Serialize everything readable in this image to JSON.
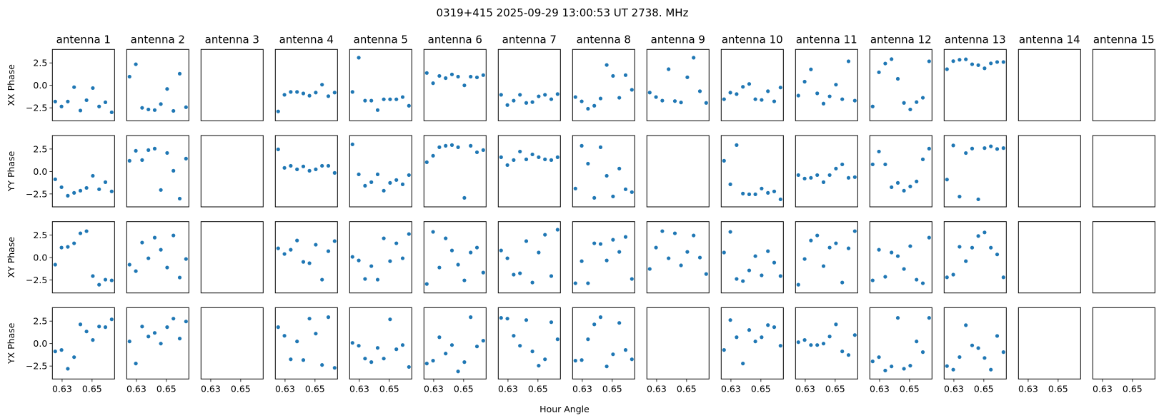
{
  "chart_data": {
    "type": "scatter",
    "title": "0319+415  2025-09-29 13:00:53 UT  2738. MHz",
    "xlabel": "Hour Angle",
    "xlim": [
      0.6235,
      0.665
    ],
    "ylim": [
      -3.94,
      4.0
    ],
    "xticks": [
      "0.63",
      "0.65"
    ],
    "xtick_values": [
      0.63,
      0.65
    ],
    "yticks": [
      "2.5",
      "0.0",
      "−2.5"
    ],
    "ytick_values": [
      2.5,
      0.0,
      -2.5
    ],
    "marker_color": "#1f77b4",
    "antennas": [
      "antenna 1",
      "antenna 2",
      "antenna 3",
      "antenna 4",
      "antenna 5",
      "antenna 6",
      "antenna 7",
      "antenna 8",
      "antenna 9",
      "antenna 10",
      "antenna 11",
      "antenna 12",
      "antenna 13",
      "antenna 14",
      "antenna 15"
    ],
    "x": [
      0.6254,
      0.6296,
      0.6338,
      0.638,
      0.6422,
      0.6463,
      0.6505,
      0.6547,
      0.6589,
      0.6631
    ],
    "rows": [
      {
        "name": "XX Phase",
        "values": [
          [
            -1.8,
            -2.35,
            -1.8,
            -0.2,
            -2.8,
            -1.65,
            -0.3,
            -2.35,
            -1.88,
            -3.0
          ],
          [
            0.97,
            2.35,
            -2.5,
            -2.68,
            -2.75,
            -2.08,
            -0.4,
            -2.84,
            1.3,
            -2.43
          ],
          null,
          [
            -2.9,
            -1.05,
            -0.73,
            -0.73,
            -0.9,
            -1.15,
            -0.8,
            0.08,
            -1.2,
            -0.8
          ],
          [
            -0.73,
            3.08,
            -1.7,
            -1.7,
            -2.75,
            -1.55,
            -1.55,
            -1.55,
            -1.3,
            -2.27
          ],
          [
            1.38,
            0.24,
            1.05,
            0.81,
            1.22,
            0.97,
            0.0,
            0.97,
            0.89,
            1.14
          ],
          [
            -1.05,
            -2.19,
            -1.7,
            -1.05,
            -1.95,
            -1.86,
            -1.22,
            -1.05,
            -1.54,
            -0.97
          ],
          [
            -1.3,
            -1.78,
            -2.6,
            -2.27,
            -1.46,
            2.27,
            1.05,
            -1.38,
            1.14,
            -0.49
          ],
          [
            -0.8,
            -1.3,
            -1.7,
            1.8,
            -1.75,
            -1.9,
            0.9,
            3.08,
            -0.65,
            -1.95
          ],
          [
            -1.54,
            -0.81,
            -0.97,
            -0.16,
            0.16,
            -1.54,
            -1.62,
            -0.65,
            -1.78,
            -0.24
          ],
          [
            -1.14,
            0.41,
            1.78,
            -0.89,
            -2.03,
            -1.22,
            0.08,
            -1.54,
            2.68,
            -1.7
          ],
          [
            -2.35,
            1.46,
            2.43,
            2.92,
            0.73,
            -1.95,
            -2.68,
            -1.86,
            -1.38,
            2.68
          ],
          [
            1.8,
            2.7,
            2.85,
            2.9,
            2.35,
            2.25,
            1.9,
            2.45,
            2.6,
            2.6
          ],
          null,
          null
        ]
      },
      {
        "name": "YY Phase",
        "values": [
          [
            -0.87,
            -1.75,
            -2.7,
            -2.38,
            -2.14,
            -1.83,
            -0.48,
            -1.98,
            -1.19,
            -2.22
          ],
          [
            1.19,
            2.3,
            1.27,
            2.38,
            2.54,
            -2.06,
            2.06,
            0.08,
            -3.02,
            1.43
          ],
          null,
          [
            2.46,
            0.4,
            0.63,
            0.24,
            0.56,
            0.08,
            0.24,
            0.63,
            0.63,
            -0.16
          ],
          [
            3.02,
            -0.32,
            -1.59,
            -1.19,
            -0.32,
            -2.14,
            -1.27,
            -0.95,
            -1.43,
            -0.4
          ],
          [
            1.03,
            1.75,
            2.7,
            2.86,
            2.94,
            2.7,
            -2.94,
            2.86,
            2.14,
            2.38
          ],
          [
            1.59,
            0.71,
            1.27,
            2.22,
            1.35,
            1.9,
            1.59,
            1.35,
            1.27,
            1.59
          ],
          [
            -1.9,
            2.86,
            0.87,
            -2.94,
            2.7,
            -0.48,
            -2.78,
            0.32,
            -1.98,
            -2.3
          ],
          null,
          [
            1.19,
            -1.43,
            2.94,
            -2.46,
            -2.54,
            -2.54,
            -1.9,
            -2.38,
            -2.22,
            -3.1
          ],
          [
            -0.4,
            -0.79,
            -0.71,
            -0.4,
            -1.19,
            -0.4,
            0.32,
            0.79,
            -0.71,
            -0.63
          ],
          [
            0.79,
            2.22,
            0.79,
            -1.75,
            -1.27,
            -2.14,
            -1.67,
            -1.11,
            1.35,
            2.54
          ],
          [
            -0.9,
            2.9,
            -2.8,
            2.05,
            2.55,
            -3.1,
            2.6,
            2.8,
            2.5,
            2.6
          ],
          null,
          null
        ]
      },
      {
        "name": "XY Phase",
        "values": [
          [
            -0.79,
            1.11,
            1.19,
            1.59,
            2.7,
            2.94,
            -2.06,
            -3.02,
            -2.46,
            -2.54
          ],
          [
            -0.79,
            -1.51,
            1.67,
            -0.08,
            2.22,
            0.87,
            -1.11,
            2.46,
            -2.22,
            -0.16
          ],
          null,
          [
            1.03,
            0.4,
            0.87,
            1.9,
            -0.48,
            -0.63,
            1.43,
            -2.46,
            0.71,
            1.83
          ],
          [
            0.08,
            -0.32,
            -2.38,
            -0.95,
            -2.46,
            2.14,
            -0.4,
            1.59,
            -0.08,
            2.62
          ],
          [
            -2.94,
            2.86,
            -1.11,
            2.14,
            0.79,
            -0.79,
            -2.54,
            0.56,
            1.11,
            -1.67
          ],
          [
            0.79,
            -0.08,
            -1.9,
            -1.75,
            1.83,
            -2.78,
            0.56,
            2.54,
            -2.06,
            3.1
          ],
          [
            -2.86,
            -0.4,
            -2.86,
            1.59,
            1.51,
            -0.32,
            1.98,
            0.63,
            2.3,
            -2.38
          ],
          [
            -1.27,
            1.11,
            2.94,
            -0.08,
            2.7,
            -0.87,
            0.63,
            2.46,
            0.0,
            -1.83
          ],
          [
            0.56,
            2.86,
            -2.38,
            -2.62,
            -1.43,
            0.16,
            -1.98,
            0.71,
            -0.56,
            -2.06
          ],
          [
            -3.02,
            -0.16,
            1.9,
            2.46,
            -0.95,
            1.11,
            1.59,
            -2.78,
            1.03,
            2.94
          ],
          [
            -2.54,
            0.87,
            -2.14,
            0.56,
            0.16,
            -1.27,
            1.27,
            -2.46,
            -2.86,
            2.22
          ],
          [
            -2.2,
            -1.9,
            1.2,
            -0.4,
            1.1,
            2.4,
            2.8,
            1.1,
            0.35,
            -2.2
          ],
          null,
          null
        ]
      },
      {
        "name": "YX Phase",
        "values": [
          [
            -0.87,
            -0.71,
            -2.8,
            -1.51,
            2.14,
            1.35,
            0.4,
            1.9,
            1.83,
            2.7
          ],
          [
            0.24,
            -2.22,
            1.9,
            0.79,
            1.19,
            0.0,
            1.83,
            2.78,
            0.56,
            2.46
          ],
          null,
          [
            1.83,
            0.87,
            -1.75,
            0.24,
            -1.83,
            2.78,
            1.11,
            -2.38,
            2.94,
            -2.7
          ],
          [
            0.08,
            -0.24,
            -1.67,
            -2.06,
            -0.48,
            -1.67,
            2.7,
            -0.63,
            -0.16,
            -2.6
          ],
          [
            -2.22,
            -1.9,
            0.71,
            -1.11,
            -0.16,
            -3.1,
            -2.06,
            2.94,
            -0.32,
            0.32
          ],
          [
            2.86,
            2.78,
            0.87,
            -0.24,
            2.62,
            -0.87,
            -2.46,
            -1.75,
            2.38,
            0.48
          ],
          [
            -1.9,
            -1.83,
            0.48,
            2.14,
            2.94,
            -2.54,
            -1.19,
            2.3,
            -0.71,
            -1.75
          ],
          null,
          [
            -0.71,
            2.62,
            0.71,
            -2.22,
            1.51,
            0.24,
            0.71,
            2.06,
            1.83,
            -0.24
          ],
          [
            0.16,
            0.4,
            -0.16,
            -0.16,
            0.0,
            0.79,
            2.14,
            -0.87,
            -1.27,
            0.95
          ],
          [
            -1.98,
            -1.51,
            -3.0,
            -2.54,
            2.86,
            -2.8,
            -2.46,
            0.24,
            -0.95,
            2.86
          ],
          [
            -2.5,
            -2.9,
            -1.5,
            2.05,
            -0.2,
            -0.5,
            -1.6,
            -2.9,
            0.85,
            -0.95
          ],
          null,
          null
        ]
      }
    ]
  }
}
